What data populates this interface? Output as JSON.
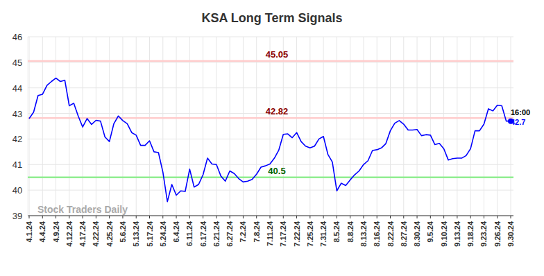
{
  "chart_data": {
    "type": "line",
    "title": "KSA Long Term Signals",
    "watermark": "Stock Traders Daily",
    "categories": [
      "4.1.24",
      null,
      null,
      "4.4.24",
      null,
      null,
      "4.9.24",
      null,
      null,
      "4.12.24",
      null,
      null,
      "4.17.24",
      null,
      null,
      "4.22.24",
      null,
      null,
      "4.25.24",
      null,
      null,
      "5.6.24",
      null,
      null,
      "5.13.24",
      null,
      null,
      "5.17.24",
      null,
      null,
      "5.24.24",
      null,
      null,
      "6.4.24",
      null,
      null,
      "6.11.24",
      null,
      null,
      "6.17.24",
      null,
      null,
      "6.21.24",
      null,
      null,
      "6.27.24",
      null,
      null,
      "7.2.24",
      null,
      null,
      "7.8.24",
      null,
      null,
      "7.11.24",
      null,
      null,
      "7.17.24",
      null,
      null,
      "7.22.24",
      null,
      null,
      "7.25.24",
      null,
      null,
      "7.31.24",
      null,
      null,
      "8.5.24",
      null,
      null,
      "8.8.24",
      null,
      null,
      "8.13.24",
      null,
      null,
      "8.16.24",
      null,
      null,
      "8.22.24",
      null,
      null,
      "8.27.24",
      null,
      null,
      "8.30.24",
      null,
      null,
      "9.5.24",
      null,
      null,
      "9.10.24",
      null,
      null,
      "9.13.24",
      null,
      null,
      "9.18.24",
      null,
      null,
      "9.23.24",
      null,
      null,
      "9.26.24",
      null,
      null,
      "9.30.24"
    ],
    "series": [
      {
        "name": "KSA",
        "color": "#0000ff",
        "values": [
          42.8,
          43.05,
          43.7,
          43.75,
          44.1,
          44.25,
          44.38,
          44.25,
          44.3,
          43.3,
          43.4,
          42.9,
          42.47,
          42.8,
          42.57,
          42.73,
          42.7,
          42.08,
          41.9,
          42.6,
          42.9,
          42.72,
          42.6,
          42.25,
          42.15,
          41.75,
          41.75,
          41.93,
          41.5,
          41.47,
          40.7,
          39.55,
          40.22,
          39.8,
          39.97,
          39.95,
          40.82,
          40.12,
          40.22,
          40.6,
          41.25,
          41.02,
          41.0,
          40.55,
          40.35,
          40.75,
          40.65,
          40.45,
          40.32,
          40.35,
          40.42,
          40.62,
          40.9,
          40.95,
          41.02,
          41.25,
          41.57,
          42.18,
          42.2,
          42.05,
          42.25,
          41.9,
          41.72,
          41.65,
          41.72,
          42.0,
          42.1,
          41.4,
          41.1,
          39.97,
          40.27,
          40.18,
          40.4,
          40.6,
          40.75,
          41.0,
          41.15,
          41.55,
          41.58,
          41.65,
          41.82,
          42.32,
          42.62,
          42.72,
          42.58,
          42.35,
          42.35,
          42.37,
          42.13,
          42.17,
          42.15,
          41.78,
          41.83,
          41.62,
          41.18,
          41.23,
          41.25,
          41.25,
          41.35,
          41.62,
          42.32,
          42.32,
          42.58,
          43.18,
          43.1,
          43.32,
          43.3,
          42.7,
          42.7
        ]
      }
    ],
    "ylim": [
      39,
      46
    ],
    "yticks": [
      39,
      40,
      41,
      42,
      43,
      44,
      45,
      46
    ],
    "grid": true,
    "reference_lines": [
      {
        "value": 45.05,
        "color": "#ffcccc",
        "label_color": "#8b0000"
      },
      {
        "value": 42.82,
        "color": "#ffcccc",
        "label_color": "#8b0000"
      },
      {
        "value": 40.5,
        "color": "#90ee90",
        "label_color": "#006400"
      }
    ],
    "annotations": [
      {
        "text": "16:00"
      },
      {
        "text": "42.7",
        "value": 42.7
      }
    ]
  }
}
